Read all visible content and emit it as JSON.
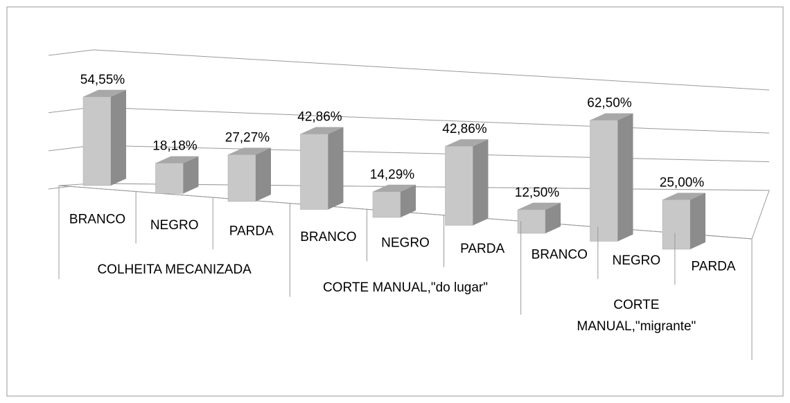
{
  "chart_data": {
    "type": "bar3d",
    "groups": [
      {
        "name": "COLHEITA MECANIZADA",
        "categories": [
          "BRANCO",
          "NEGRO",
          "PARDA"
        ],
        "values": [
          54.55,
          18.18,
          27.27
        ],
        "value_labels": [
          "54,55%",
          "18,18%",
          "27,27%"
        ]
      },
      {
        "name": "CORTE MANUAL,\"do lugar\"",
        "categories": [
          "BRANCO",
          "NEGRO",
          "PARDA"
        ],
        "values": [
          42.86,
          14.29,
          42.86
        ],
        "value_labels": [
          "42,86%",
          "14,29%",
          "42,86%"
        ]
      },
      {
        "name": "CORTE MANUAL,\"migrante\"",
        "categories": [
          "BRANCO",
          "NEGRO",
          "PARDA"
        ],
        "values": [
          12.5,
          62.5,
          25.0
        ],
        "value_labels": [
          "12,50%",
          "62,50%",
          "25,00%"
        ]
      }
    ],
    "color": "#c8c8c8",
    "ylim": [
      0,
      70
    ],
    "yticks": [
      0,
      20,
      40
    ],
    "grid": true
  }
}
